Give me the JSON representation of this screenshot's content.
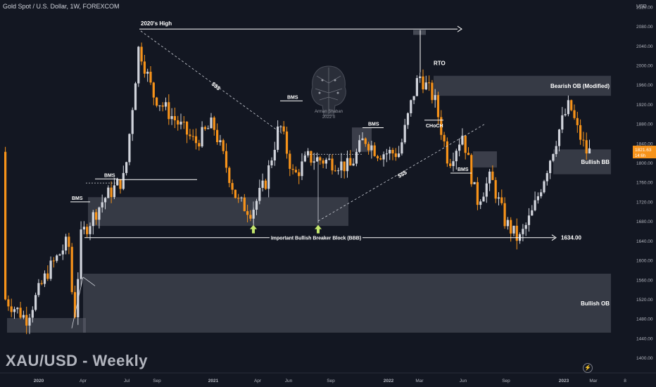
{
  "header": {
    "title": "Gold Spot / U.S. Dollar, 1W, FOREXCOM"
  },
  "watermark": {
    "label": "XAU/USD - Weekly"
  },
  "logo": {
    "line1": "Arman Shaban",
    "line2": "2022 II"
  },
  "chart_data": {
    "type": "candlestick",
    "symbol": "XAU/USD",
    "timeframe": "1W",
    "currency": "USD",
    "ylim": [
      1400,
      2140
    ],
    "y_ticks": [
      1400,
      1440,
      1480,
      1520,
      1560,
      1600,
      1640,
      1680,
      1720,
      1760,
      1800,
      1840,
      1880,
      1920,
      1960,
      2000,
      2040,
      2080,
      2120
    ],
    "x_ticks": [
      "2020",
      "Apr",
      "Jul",
      "Sep",
      "2021",
      "Apr",
      "Jun",
      "Sep",
      "2022",
      "Mar",
      "Jun",
      "Sep",
      "2023",
      "Mar",
      "8"
    ],
    "colors": {
      "up": "#d1d4dc",
      "down": "#f7931a",
      "background": "#131722",
      "zone": "#787b86"
    },
    "price_label": {
      "value": "1821.63",
      "sub": "14:6h"
    },
    "key_level": {
      "label": "1634.00",
      "value": 1634
    },
    "annotations": [
      {
        "text": "2020's High",
        "type": "line",
        "value": 2074
      },
      {
        "text": "BMS",
        "type": "label"
      },
      {
        "text": "BMS",
        "type": "label"
      },
      {
        "text": "BMS",
        "type": "label"
      },
      {
        "text": "BMS",
        "type": "label"
      },
      {
        "text": "BMS",
        "type": "label"
      },
      {
        "text": "$$$",
        "type": "label"
      },
      {
        "text": "$$$",
        "type": "label"
      },
      {
        "text": "RTO",
        "type": "label"
      },
      {
        "text": "CHoCH",
        "type": "label"
      },
      {
        "text": "Important Bullish Breaker Block (BBB)",
        "type": "line",
        "value": 1646
      }
    ],
    "zones": [
      {
        "label": "Bearish OB (Modified)",
        "from": 1937,
        "to": 1978
      },
      {
        "label": "Bullish BB",
        "from": 1776,
        "to": 1827
      },
      {
        "label": "Bullish OB",
        "from": 1451,
        "to": 1572
      },
      {
        "label": "",
        "from": 1670,
        "to": 1729
      },
      {
        "label": "",
        "from": 1451,
        "to": 1481
      }
    ]
  }
}
